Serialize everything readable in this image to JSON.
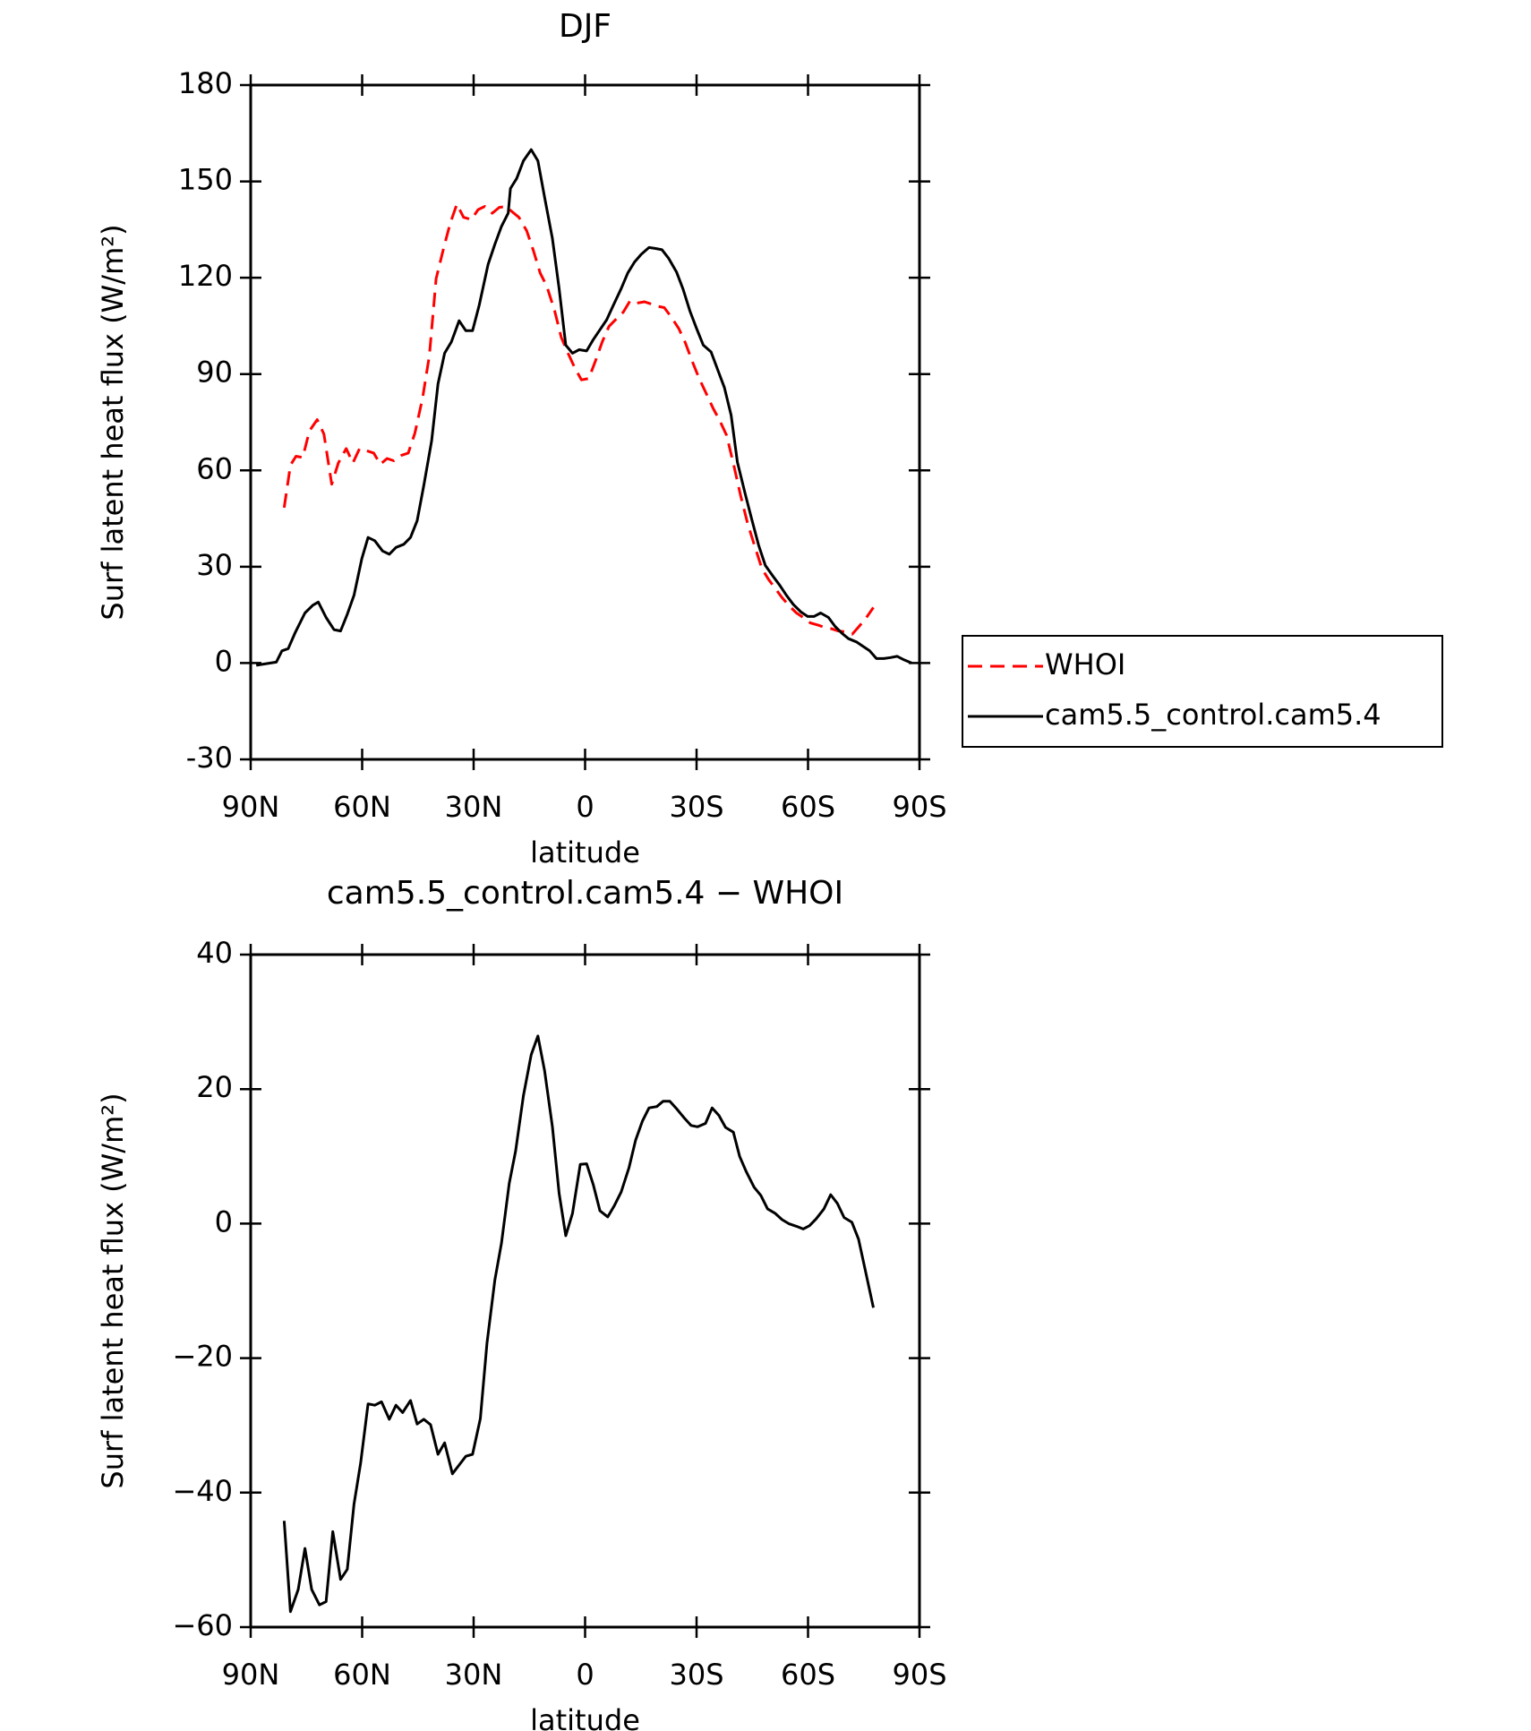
{
  "chart_data": [
    {
      "type": "line",
      "title": "DJF",
      "x_label": "latitude",
      "y_label": "Surf latent heat flux (W/m²)",
      "xlim": [
        90,
        -90
      ],
      "xticks": [
        {
          "value": 90,
          "label": "90N"
        },
        {
          "value": 60,
          "label": "60N"
        },
        {
          "value": 30,
          "label": "30N"
        },
        0,
        {
          "value": -30,
          "label": "30S"
        },
        {
          "value": -60,
          "label": "60S"
        },
        {
          "value": -90,
          "label": "90S"
        }
      ],
      "ylim": [
        -30,
        180
      ],
      "yticks": [
        -30,
        0,
        30,
        60,
        90,
        120,
        150,
        180
      ],
      "grid": false,
      "legend": "right",
      "series": [
        {
          "name": "WHOI",
          "color": "#ff0000",
          "line_style": "dashed",
          "x": [
            81.0,
            79.3,
            77.8,
            76.0,
            74.2,
            72.1,
            70.3,
            68.2,
            66.4,
            64.3,
            62.5,
            60.7,
            58.7,
            56.9,
            55.1,
            53.3,
            51.5,
            49.4,
            47.6,
            45.8,
            43.7,
            41.9,
            40.1,
            38.1,
            36.3,
            34.5,
            32.7,
            30.6,
            28.8,
            27.0,
            25.0,
            23.1,
            21.3,
            19.6,
            17.8,
            15.7,
            13.9,
            12.1,
            10.3,
            8.2,
            6.4,
            4.6,
            2.8,
            1.0,
            -1.0,
            -2.8,
            -4.6,
            -6.4,
            -8.5,
            -10.3,
            -12.1,
            -13.9,
            -16.0,
            -17.8,
            -19.6,
            -21.3,
            -23.1,
            -25.2,
            -27.0,
            -28.8,
            -30.6,
            -32.7,
            -34.5,
            -36.3,
            -38.1,
            -40.1,
            -41.9,
            -43.7,
            -45.5,
            -47.6,
            -49.4,
            -51.2,
            -53.0,
            -55.1,
            -56.9,
            -58.7,
            -60.6,
            -62.7,
            -64.5,
            -66.3,
            -68.1,
            -70.1,
            -71.9,
            -73.7,
            -75.5,
            -77.6
          ],
          "values": [
            48.4,
            61.6,
            64.4,
            64,
            72.3,
            75.8,
            71.3,
            55.7,
            62.3,
            66.8,
            62.3,
            66.8,
            66.1,
            65.4,
            61.9,
            63.7,
            63,
            64.7,
            65.4,
            71.6,
            82.7,
            95.8,
            119.7,
            129.1,
            137,
            142.9,
            138.8,
            138.1,
            141.2,
            142.2,
            140.1,
            141.9,
            142.2,
            140.5,
            138.8,
            134.6,
            128.4,
            121.5,
            117.3,
            109.7,
            101.4,
            96.5,
            92,
            88.2,
            88.6,
            94.1,
            100,
            104.8,
            107.3,
            109.3,
            112.8,
            112.1,
            112.5,
            111.8,
            111.1,
            110.7,
            107.9,
            104.2,
            99.7,
            94.1,
            88.9,
            83.7,
            79.2,
            75.4,
            70.9,
            61.2,
            51.9,
            43.6,
            37,
            29.4,
            26,
            23.2,
            20.4,
            17.6,
            15.6,
            14.2,
            12.5,
            11.8,
            11.1,
            10.7,
            10,
            9.7,
            9,
            11.4,
            13.8,
            17.3
          ]
        },
        {
          "name": "cam5.5_control.cam5.4",
          "color": "#000000",
          "line_style": "solid",
          "x": [
            88.5,
            83.1,
            81.6,
            79.9,
            78.1,
            75.4,
            73.3,
            71.8,
            69.7,
            67.6,
            65.8,
            64.0,
            62.2,
            60.1,
            58.4,
            56.6,
            54.5,
            52.7,
            50.9,
            48.8,
            47.0,
            45.2,
            43.4,
            41.3,
            39.6,
            37.8,
            36.0,
            33.9,
            32.1,
            30.3,
            28.5,
            26.1,
            24.3,
            22.5,
            20.7,
            20.1,
            18.4,
            16.6,
            14.5,
            12.7,
            10.9,
            8.8,
            7.0,
            5.2,
            3.4,
            1.6,
            -0.4,
            -2.2,
            -4.0,
            -5.8,
            -7.6,
            -9.7,
            -11.5,
            -13.3,
            -15.1,
            -17.2,
            -19.0,
            -20.7,
            -22.5,
            -24.6,
            -26.4,
            -28.2,
            -30.0,
            -31.8,
            -33.9,
            -35.7,
            -37.5,
            -39.3,
            -41.0,
            -43.1,
            -44.9,
            -46.7,
            -48.5,
            -50.6,
            -52.4,
            -54.2,
            -56.0,
            -58.1,
            -59.9,
            -61.6,
            -63.4,
            -65.5,
            -67.3,
            -69.1,
            -70.9,
            -73.0,
            -74.8,
            -76.6,
            -78.4,
            -80.4,
            -82.2,
            -84.0,
            -85.8,
            -87.9
          ],
          "values": [
            -0.7,
            0.3,
            3.8,
            4.5,
            9.3,
            15.6,
            18,
            19,
            14.2,
            10.4,
            10,
            15.2,
            21.1,
            32.5,
            39.1,
            38.1,
            34.9,
            33.9,
            36,
            37,
            39.1,
            44.3,
            55.4,
            69.2,
            86.9,
            96.5,
            100,
            106.6,
            103.5,
            103.5,
            111.4,
            124.2,
            130.4,
            136,
            140.1,
            147.8,
            150.9,
            156.4,
            159.9,
            156.4,
            145,
            132.2,
            116.6,
            99,
            96.5,
            97.6,
            97.2,
            100.7,
            103.8,
            106.9,
            111.4,
            116.6,
            121.5,
            124.9,
            127.3,
            129.4,
            129.1,
            128.7,
            126,
            121.8,
            116.3,
            109.7,
            104.2,
            99,
            96.9,
            91.3,
            85.8,
            77.2,
            62.6,
            52.6,
            44.6,
            36.7,
            30.4,
            27,
            24.2,
            21.1,
            18.3,
            15.9,
            14.5,
            14.5,
            15.6,
            14.2,
            11.4,
            9.3,
            7.6,
            6.6,
            5.2,
            3.8,
            1.4,
            1.4,
            1.7,
            2.1,
            1.0,
            0
          ]
        }
      ]
    },
    {
      "type": "line",
      "title": "cam5.5_control.cam5.4 − WHOI",
      "x_label": "latitude",
      "y_label": "Surf latent heat flux (W/m²)",
      "xlim": [
        90,
        -90
      ],
      "xticks": [
        {
          "value": 90,
          "label": "90N"
        },
        {
          "value": 60,
          "label": "60N"
        },
        {
          "value": 30,
          "label": "30N"
        },
        0,
        {
          "value": -30,
          "label": "30S"
        },
        {
          "value": -60,
          "label": "60S"
        },
        {
          "value": -90,
          "label": "90S"
        }
      ],
      "ylim": [
        -60,
        40
      ],
      "yticks": [
        {
          "value": -60,
          "label": "−60"
        },
        {
          "value": -40,
          "label": "−40"
        },
        {
          "value": -20,
          "label": "−20"
        },
        0,
        20,
        40
      ],
      "grid": false,
      "series": [
        {
          "color": "#000000",
          "line_style": "solid",
          "x": [
            81.0,
            79.3,
            77.2,
            75.4,
            73.6,
            71.5,
            69.7,
            67.9,
            65.8,
            64.0,
            62.2,
            60.4,
            58.4,
            56.6,
            54.8,
            52.7,
            50.9,
            49.1,
            47.0,
            45.2,
            43.4,
            41.6,
            39.6,
            37.8,
            35.7,
            33.9,
            32.1,
            30.3,
            28.2,
            26.4,
            24.3,
            22.5,
            20.4,
            18.7,
            16.6,
            14.5,
            12.7,
            10.9,
            8.8,
            7.0,
            5.2,
            3.4,
            1.3,
            -0.4,
            -2.2,
            -4.0,
            -6.1,
            -7.9,
            -9.7,
            -11.8,
            -13.6,
            -15.4,
            -17.2,
            -19.3,
            -21.0,
            -22.8,
            -24.6,
            -26.7,
            -28.5,
            -30.3,
            -32.4,
            -34.2,
            -36.0,
            -37.8,
            -39.9,
            -41.6,
            -43.4,
            -45.5,
            -47.3,
            -49.1,
            -51.2,
            -53.0,
            -54.8,
            -56.9,
            -58.7,
            -60.4,
            -62.2,
            -64.3,
            -66.1,
            -67.9,
            -69.7,
            -71.8,
            -73.6,
            -75.4,
            -77.6
          ],
          "values": [
            -44.2,
            -57.7,
            -54.4,
            -48.3,
            -54.4,
            -56.7,
            -56.2,
            -45.8,
            -52.9,
            -51.4,
            -41.7,
            -35.6,
            -26.8,
            -27,
            -26.5,
            -29.1,
            -27,
            -28.1,
            -26.3,
            -29.8,
            -29.1,
            -29.9,
            -34.3,
            -32.6,
            -37.2,
            -35.9,
            -34.6,
            -34.3,
            -29,
            -17.8,
            -8.4,
            -2.9,
            6,
            10.8,
            19,
            25.1,
            27.9,
            22.7,
            14.4,
            4.5,
            -1.8,
            1.5,
            8.8,
            8.9,
            5.8,
            1.9,
            1,
            2.7,
            4.7,
            8.3,
            12.4,
            15.2,
            17.2,
            17.4,
            18.2,
            18.2,
            17.1,
            15.7,
            14.6,
            14.4,
            14.9,
            17.2,
            16.1,
            14.3,
            13.6,
            10,
            7.7,
            5.4,
            4.2,
            2.2,
            1.5,
            0.6,
            0,
            -0.4,
            -0.8,
            -0.3,
            0.7,
            2.2,
            4.3,
            3,
            0.9,
            0.2,
            -2.3,
            -6.9,
            -12.5
          ]
        }
      ]
    }
  ]
}
